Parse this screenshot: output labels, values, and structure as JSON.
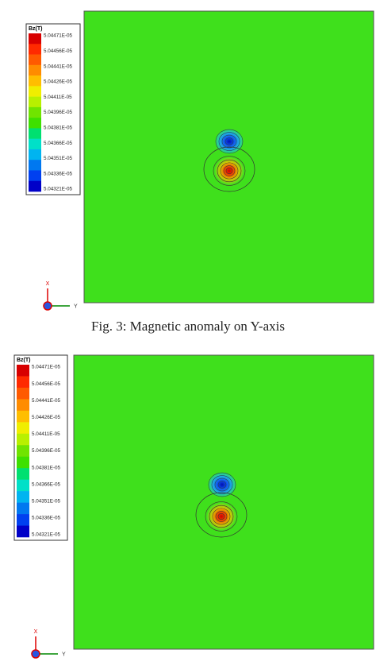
{
  "figures": [
    {
      "legend": {
        "title": "Bz(T)",
        "labels": [
          "5.04471E-05",
          "5.04456E-05",
          "5.04441E-05",
          "5.04426E-05",
          "5.04411E-05",
          "5.04396E-05",
          "5.04381E-05",
          "5.04366E-05",
          "5.04351E-05",
          "5.04336E-05",
          "5.04321E-05"
        ]
      },
      "axes": {
        "x": "X",
        "y": "Y"
      },
      "caption": "Fig. 3: Magnetic anomaly on Y-axis"
    },
    {
      "legend": {
        "title": "Bz(T)",
        "labels": [
          "5.04471E-05",
          "5.04456E-05",
          "5.04441E-05",
          "5.04426E-05",
          "5.04411E-05",
          "5.04396E-05",
          "5.04381E-05",
          "5.04366E-05",
          "5.04351E-05",
          "5.04336E-05",
          "5.04321E-05"
        ]
      },
      "axes": {
        "x": "X",
        "y": "Y"
      }
    }
  ]
}
